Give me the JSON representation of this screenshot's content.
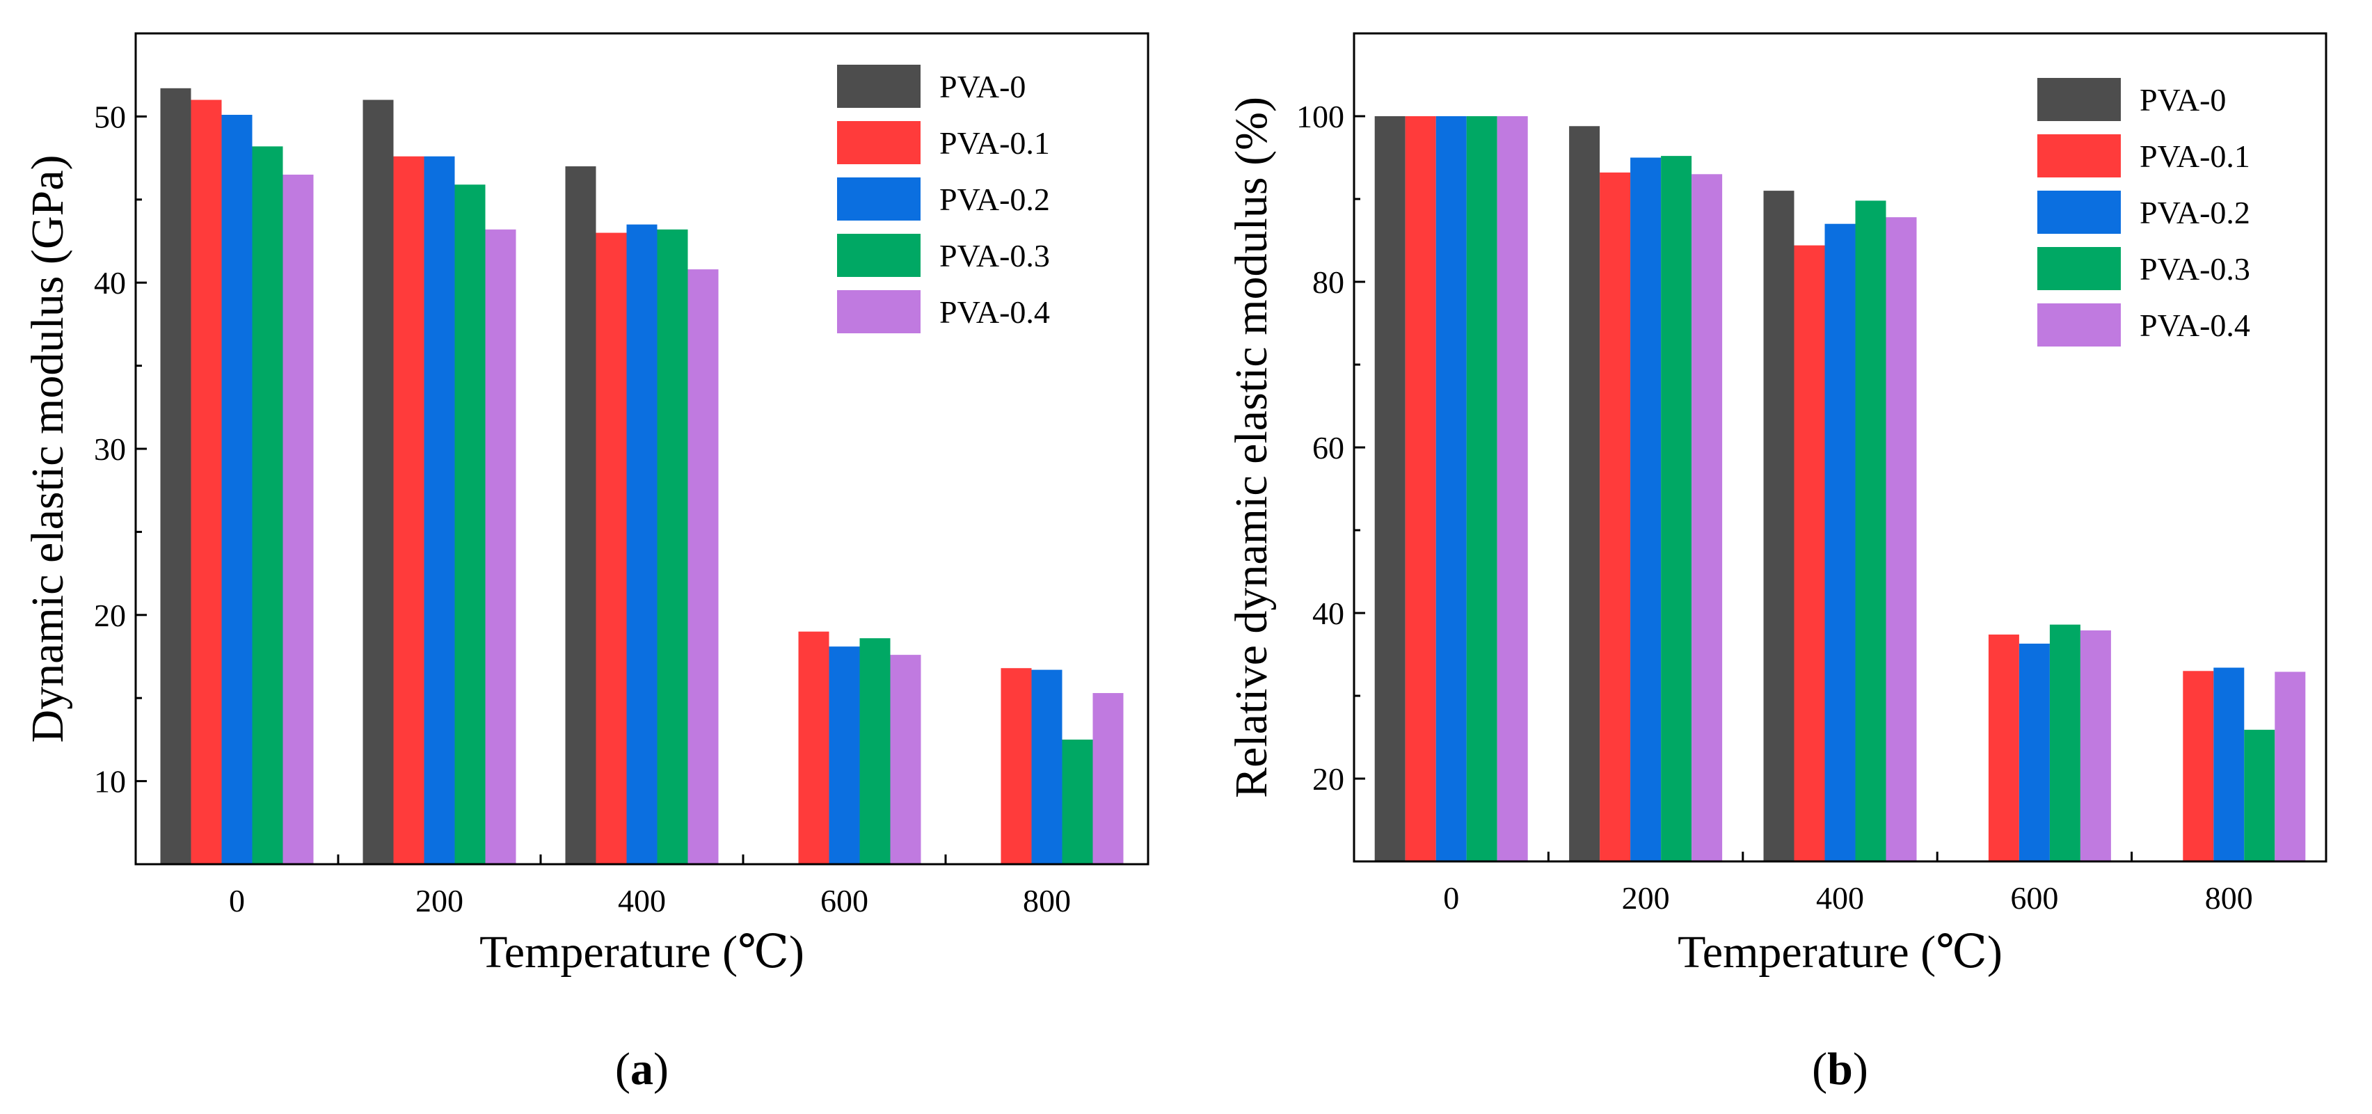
{
  "chart_data": [
    {
      "id": "a",
      "type": "bar",
      "categories": [
        "0",
        "200",
        "400",
        "600",
        "800"
      ],
      "series": [
        {
          "name": "PVA-0",
          "color": "#4d4d4d",
          "values": [
            51.7,
            51.0,
            47.0,
            null,
            null
          ]
        },
        {
          "name": "PVA-0.1",
          "color": "#ff3b3b",
          "values": [
            51.0,
            47.6,
            43.0,
            19.0,
            16.8
          ]
        },
        {
          "name": "PVA-0.2",
          "color": "#0b6fe0",
          "values": [
            50.1,
            47.6,
            43.5,
            18.1,
            16.7
          ]
        },
        {
          "name": "PVA-0.3",
          "color": "#00a864",
          "values": [
            48.2,
            45.9,
            43.2,
            18.6,
            12.5
          ]
        },
        {
          "name": "PVA-0.4",
          "color": "#c07ae0",
          "values": [
            46.5,
            43.2,
            40.8,
            17.6,
            15.3
          ]
        }
      ],
      "xlabel": "Temperature (℃)",
      "ylabel": "Dynamic elastic modulus (GPa)",
      "ylim": [
        5,
        55
      ],
      "yticks": [
        10,
        20,
        30,
        40,
        50
      ],
      "grid": false,
      "legend": "top-right",
      "caption": {
        "open": "(",
        "letter": "a",
        "close": ")"
      }
    },
    {
      "id": "b",
      "type": "bar",
      "categories": [
        "0",
        "200",
        "400",
        "600",
        "800"
      ],
      "series": [
        {
          "name": "PVA-0",
          "color": "#4d4d4d",
          "values": [
            100,
            98.8,
            91.0,
            null,
            null
          ]
        },
        {
          "name": "PVA-0.1",
          "color": "#ff3b3b",
          "values": [
            100,
            93.2,
            84.4,
            37.4,
            33.0
          ]
        },
        {
          "name": "PVA-0.2",
          "color": "#0b6fe0",
          "values": [
            100,
            95.0,
            87.0,
            36.3,
            33.4
          ]
        },
        {
          "name": "PVA-0.3",
          "color": "#00a864",
          "values": [
            100,
            95.2,
            89.8,
            38.6,
            25.9
          ]
        },
        {
          "name": "PVA-0.4",
          "color": "#c07ae0",
          "values": [
            100,
            93.0,
            87.8,
            37.9,
            32.9
          ]
        }
      ],
      "xlabel": "Temperature (℃)",
      "ylabel": "Relative dynamic elastic modulus (%)",
      "ylim": [
        10,
        110
      ],
      "yticks": [
        20,
        40,
        60,
        80,
        100
      ],
      "grid": false,
      "legend": "top-right",
      "caption": {
        "open": "(",
        "letter": "b",
        "close": ")"
      }
    }
  ]
}
